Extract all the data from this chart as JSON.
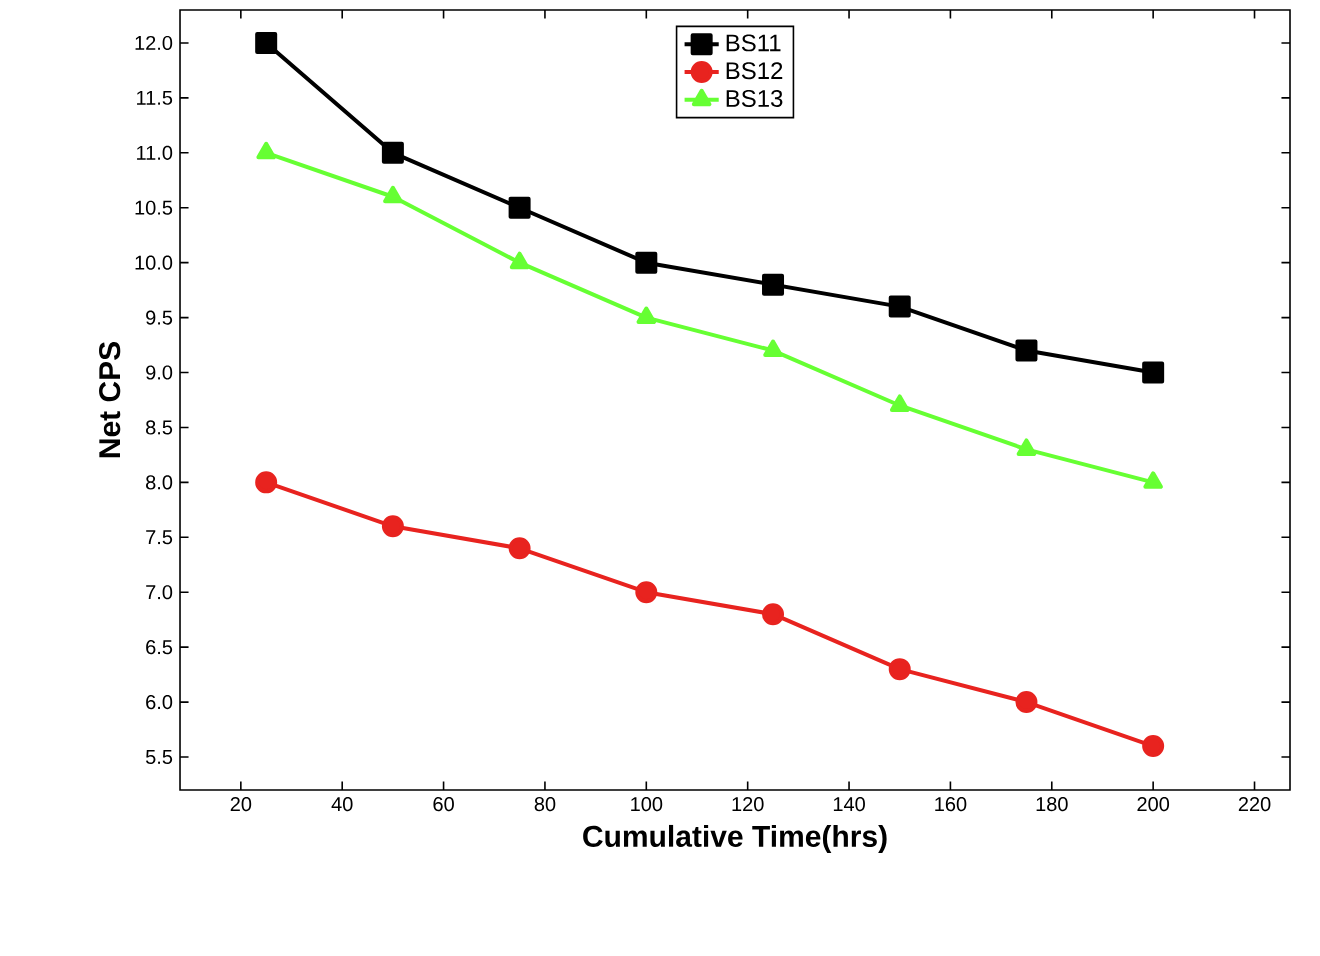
{
  "chart_data": {
    "type": "line",
    "xlabel": "Cumulative Time(hrs)",
    "ylabel": "Net CPS",
    "x": [
      25,
      50,
      75,
      100,
      125,
      150,
      175,
      200
    ],
    "series": [
      {
        "name": "BS11",
        "color": "#000000",
        "marker": "square",
        "values": [
          12.0,
          11.0,
          10.5,
          10.0,
          9.8,
          9.6,
          9.2,
          9.0
        ]
      },
      {
        "name": "BS12",
        "color": "#e8231f",
        "marker": "circle",
        "values": [
          8.0,
          7.6,
          7.4,
          7.0,
          6.8,
          6.3,
          6.0,
          5.6
        ]
      },
      {
        "name": "BS13",
        "color": "#66ff33",
        "marker": "triangle",
        "values": [
          11.0,
          10.6,
          10.0,
          9.5,
          9.2,
          8.7,
          8.3,
          8.0
        ]
      }
    ],
    "xlim": [
      8,
      227
    ],
    "xticks": [
      20,
      40,
      60,
      80,
      100,
      120,
      140,
      160,
      180,
      200,
      220
    ],
    "ylim": [
      5.2,
      12.3
    ],
    "yticks": [
      {
        "value": 5.5,
        "label": "5.5"
      },
      {
        "value": 6.0,
        "label": "6.0"
      },
      {
        "value": 6.5,
        "label": "6.5"
      },
      {
        "value": 7.0,
        "label": "7.0"
      },
      {
        "value": 7.5,
        "label": "7.5"
      },
      {
        "value": 8.0,
        "label": "8.0"
      },
      {
        "value": 8.5,
        "label": "8.5"
      },
      {
        "value": 9.0,
        "label": "9.0"
      },
      {
        "value": 9.5,
        "label": "9.5"
      },
      {
        "value": 10.0,
        "label": "10.0"
      },
      {
        "value": 10.5,
        "label": "10.5"
      },
      {
        "value": 11.0,
        "label": "11.0"
      },
      {
        "value": 11.5,
        "label": "11.5"
      },
      {
        "value": 12.0,
        "label": "12.0"
      }
    ],
    "legend": "top",
    "grid": false,
    "line_style": "solid"
  }
}
